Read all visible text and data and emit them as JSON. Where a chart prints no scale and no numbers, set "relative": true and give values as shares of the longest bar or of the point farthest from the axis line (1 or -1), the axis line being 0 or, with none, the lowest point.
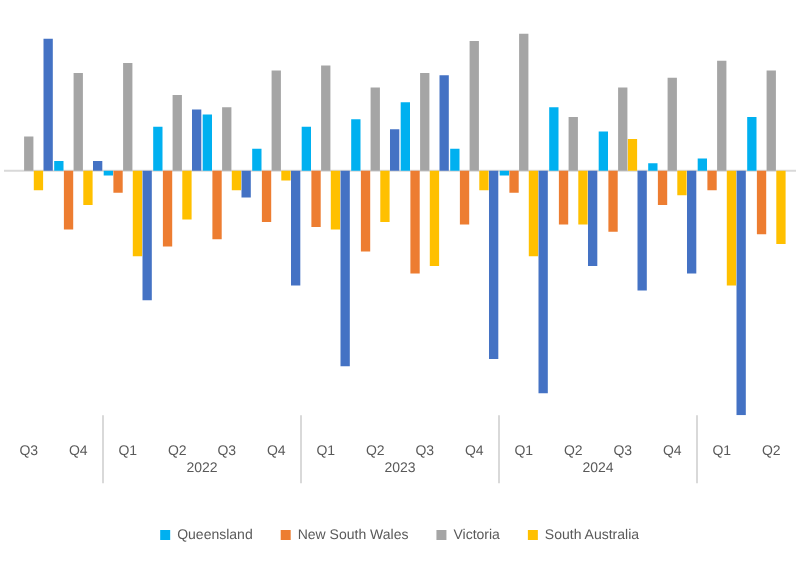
{
  "chart_data": {
    "type": "bar",
    "relative": true,
    "legend": "bottom",
    "categories": [
      "Q3",
      "Q4",
      "Q1",
      "Q2",
      "Q3",
      "Q4",
      "Q1",
      "Q2",
      "Q3",
      "Q4",
      "Q1",
      "Q2",
      "Q3",
      "Q4",
      "Q1",
      "Q2"
    ],
    "annotations": [
      "2022",
      "2023",
      "2024"
    ],
    "series": [
      {
        "name": "Queensland",
        "color": "#00b0f0",
        "values": [
          null,
          0.04,
          -0.02,
          0.18,
          0.23,
          0.09,
          0.18,
          0.21,
          0.28,
          0.09,
          -0.02,
          0.26,
          0.16,
          0.03,
          0.05,
          0.22
        ]
      },
      {
        "name": "New South Wales",
        "color": "#ed7d31",
        "values": [
          null,
          -0.24,
          -0.09,
          -0.31,
          -0.28,
          -0.21,
          -0.23,
          -0.33,
          -0.42,
          -0.22,
          -0.09,
          -0.22,
          -0.25,
          -0.14,
          -0.08,
          -0.26
        ]
      },
      {
        "name": "Victoria",
        "color": "#a5a5a5",
        "values": [
          0.14,
          0.4,
          0.44,
          0.31,
          0.26,
          0.41,
          0.43,
          0.34,
          0.4,
          0.53,
          0.56,
          0.22,
          0.34,
          0.38,
          0.45,
          0.41
        ]
      },
      {
        "name": "South Australia",
        "color": "#ffc000",
        "values": [
          -0.08,
          -0.14,
          -0.35,
          -0.2,
          -0.08,
          -0.04,
          -0.24,
          -0.21,
          -0.39,
          -0.08,
          -0.35,
          -0.22,
          0.13,
          -0.1,
          -0.47,
          -0.3
        ]
      },
      {
        "color": "#4472c4",
        "values": [
          0.54,
          0.04,
          -0.53,
          0.25,
          -0.11,
          -0.47,
          -0.8,
          0.17,
          0.39,
          -0.77,
          -0.91,
          -0.39,
          -0.49,
          -0.42,
          -1,
          null
        ]
      }
    ]
  }
}
